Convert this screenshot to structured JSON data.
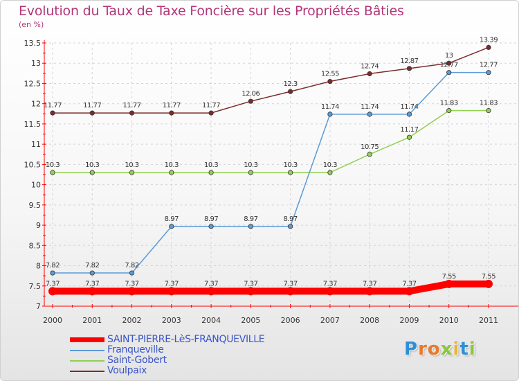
{
  "header": {
    "title": "Evolution du Taux de Taxe Foncière sur les Propriétés Bâties",
    "subtitle": "(en %)"
  },
  "logo": {
    "text": "Proxiti",
    "letters": [
      {
        "char": "P",
        "color": "#2f8fd6"
      },
      {
        "char": "r",
        "color": "#e87a2e"
      },
      {
        "char": "o",
        "color": "#e87a2e"
      },
      {
        "char": "x",
        "color": "#8dc63f"
      },
      {
        "char": "i",
        "color": "#e8b62e"
      },
      {
        "char": "t",
        "color": "#2f8fd6"
      },
      {
        "char": "i",
        "color": "#8dc63f"
      }
    ]
  },
  "chart_data": {
    "type": "line",
    "title": "Evolution du Taux de Taxe Foncière sur les Propriétés Bâties",
    "ylabel": "(en %)",
    "xlabel": "",
    "ylim": [
      7,
      13.5
    ],
    "y_ticks": [
      "7",
      "7.5",
      "8",
      "8.5",
      "9",
      "9.5",
      "10",
      "10.5",
      "11",
      "11.5",
      "12",
      "12.5",
      "13",
      "13.5"
    ],
    "x": [
      "2000",
      "2001",
      "2002",
      "2003",
      "2004",
      "2005",
      "2006",
      "2007",
      "2008",
      "2009",
      "2010",
      "2011"
    ],
    "series": [
      {
        "name": "SAINT-PIERRE-LèS-FRANQUEVILLE",
        "color": "#ff0000",
        "thick": true,
        "values": [
          7.37,
          7.37,
          7.37,
          7.37,
          7.37,
          7.37,
          7.37,
          7.37,
          7.37,
          7.37,
          7.55,
          7.55
        ],
        "labels": [
          "7.37",
          "7.37",
          "7.37",
          "7.37",
          "7.37",
          "7.37",
          "7.37",
          "7.37",
          "7.37",
          "7.37",
          "7.55",
          "7.55"
        ]
      },
      {
        "name": "Franqueville",
        "color": "#5b9bd5",
        "thick": false,
        "values": [
          7.82,
          7.82,
          7.82,
          8.97,
          8.97,
          8.97,
          8.97,
          11.74,
          11.74,
          11.74,
          12.77,
          12.77
        ],
        "labels": [
          "7.82",
          "7.82",
          "7.82",
          "8.97",
          "8.97",
          "8.97",
          "8.97",
          "11.74",
          "11.74",
          "11.74",
          "12.77",
          "12.77"
        ]
      },
      {
        "name": "Saint-Gobert",
        "color": "#92d050",
        "thick": false,
        "values": [
          10.3,
          10.3,
          10.3,
          10.3,
          10.3,
          10.3,
          10.3,
          10.3,
          10.75,
          11.17,
          11.83,
          11.83
        ],
        "labels": [
          "10.3",
          "10.3",
          "10.3",
          "10.3",
          "10.3",
          "10.3",
          "10.3",
          "10.3",
          "10.75",
          "11.17",
          "11.83",
          "11.83"
        ]
      },
      {
        "name": "Voulpaix",
        "color": "#7b2c2c",
        "thick": false,
        "values": [
          11.77,
          11.77,
          11.77,
          11.77,
          11.77,
          12.06,
          12.3,
          12.55,
          12.74,
          12.87,
          13.0,
          13.39
        ],
        "labels": [
          "11.77",
          "11.77",
          "11.77",
          "11.77",
          "11.77",
          "12.06",
          "12.3",
          "12.55",
          "12.74",
          "12.87",
          "13",
          "13.39"
        ]
      }
    ]
  }
}
